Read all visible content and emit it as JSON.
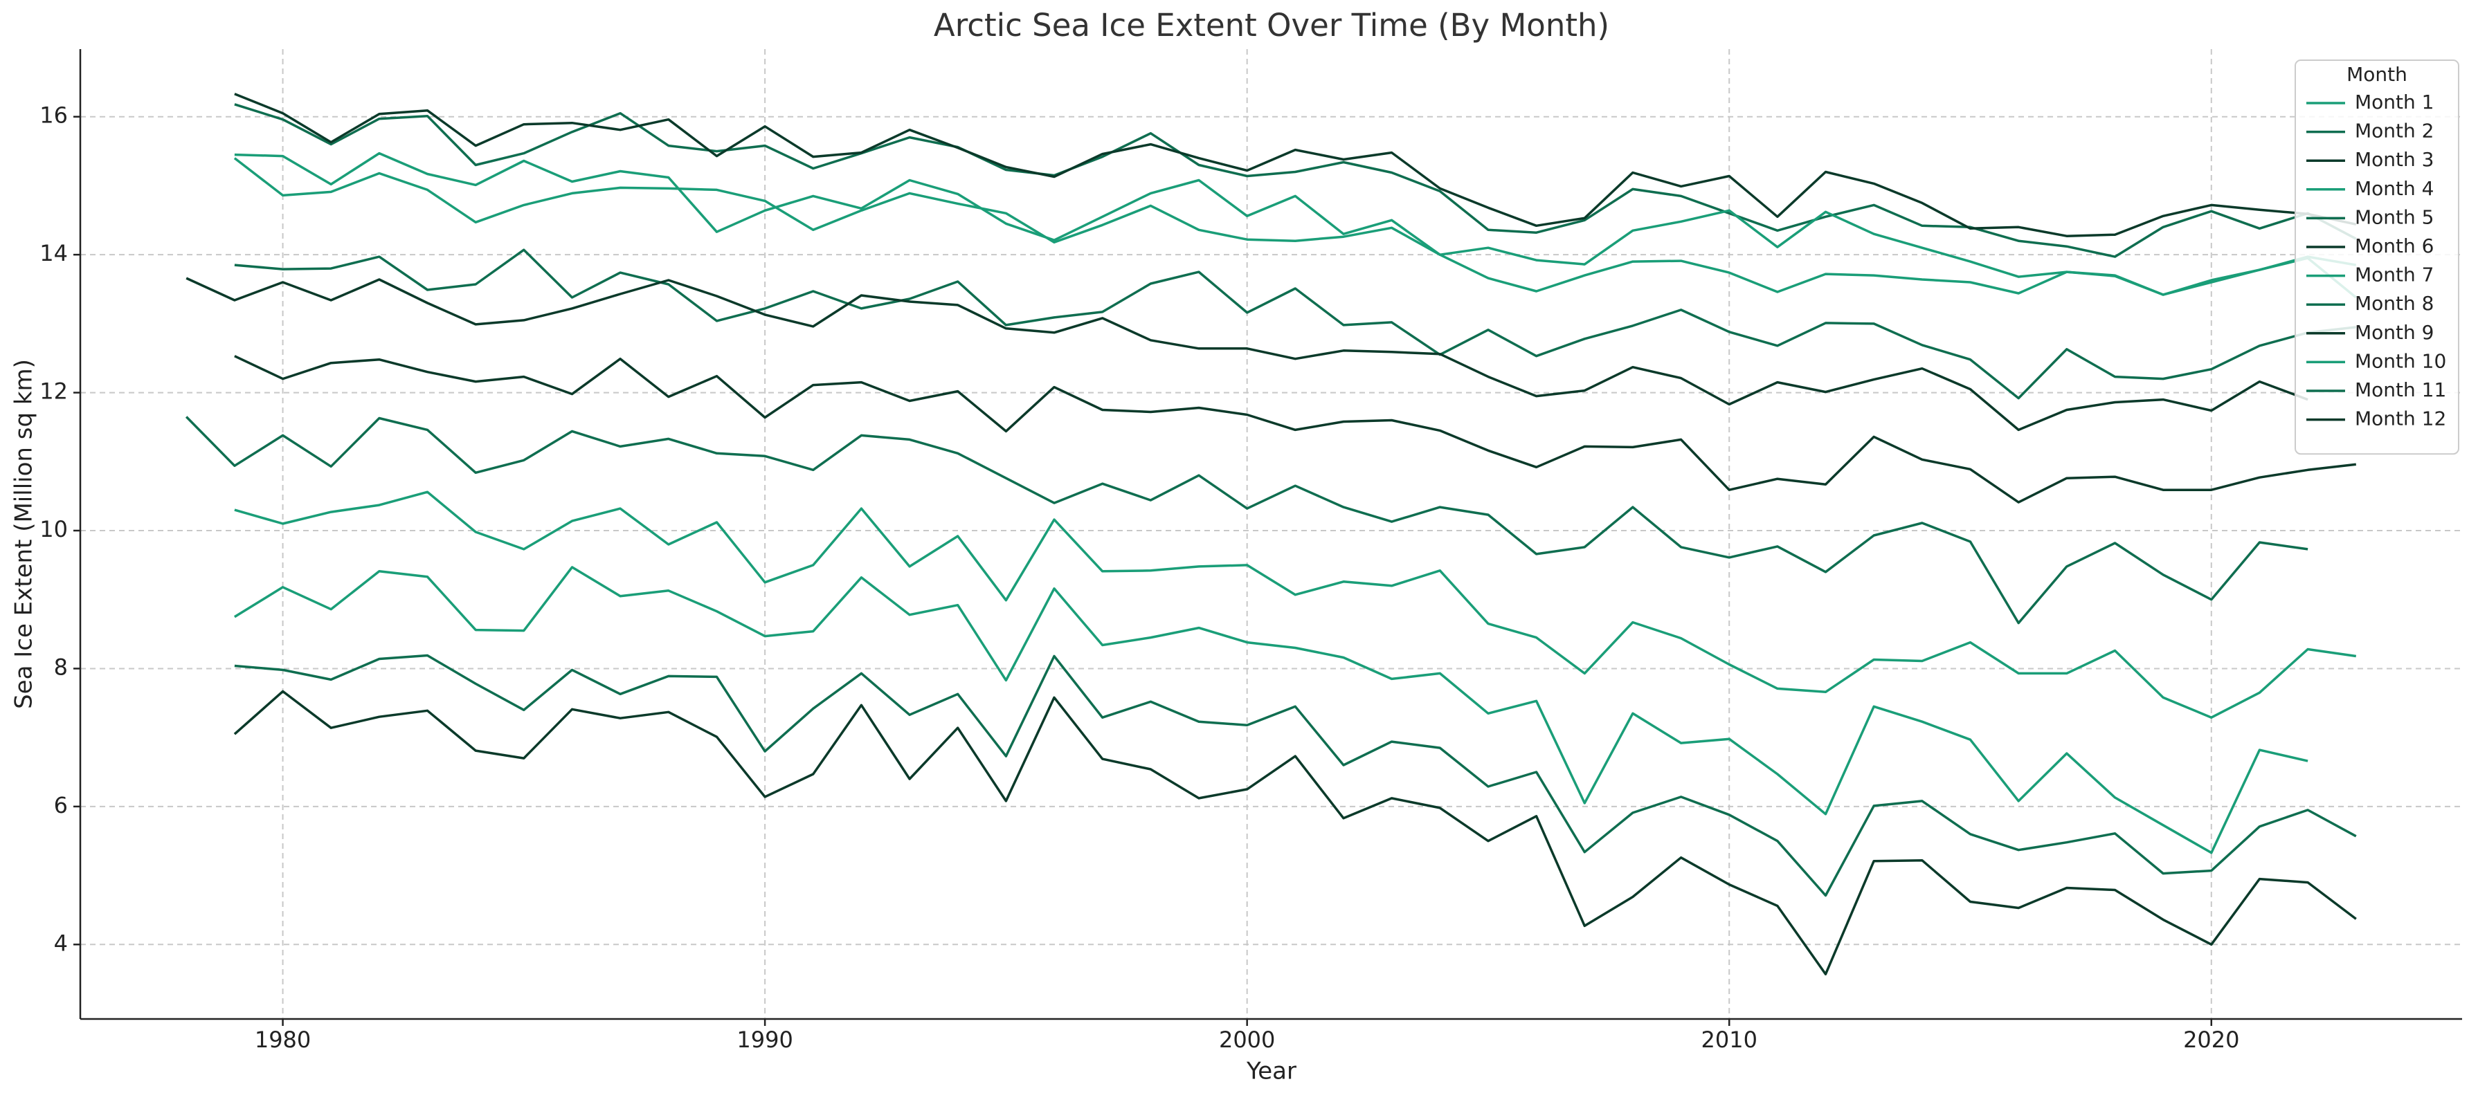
{
  "chart_data": {
    "type": "line",
    "title": "Arctic Sea Ice Extent Over Time (By Month)",
    "x_label": "Year",
    "y_label": "Sea Ice Extent (Million sq km)",
    "legend_title": "Month",
    "legend": "upper right",
    "grid": true,
    "xlim": [
      1975.8,
      2025.2
    ],
    "ylim": [
      2.92,
      16.98
    ],
    "xticks": [
      1980,
      1990,
      2000,
      2010,
      2020
    ],
    "yticks": [
      4,
      6,
      8,
      10,
      12,
      14,
      16
    ],
    "x": [
      1978,
      1979,
      1980,
      1981,
      1982,
      1983,
      1984,
      1985,
      1986,
      1987,
      1988,
      1989,
      1990,
      1991,
      1992,
      1993,
      1994,
      1995,
      1996,
      1997,
      1998,
      1999,
      2000,
      2001,
      2002,
      2003,
      2004,
      2005,
      2006,
      2007,
      2008,
      2009,
      2010,
      2011,
      2012,
      2013,
      2014,
      2015,
      2016,
      2017,
      2018,
      2019,
      2020,
      2021,
      2022,
      2023
    ],
    "series": [
      {
        "name": "Month 1",
        "color": "#1a9e78",
        "values": [
          null,
          15.4,
          14.86,
          14.91,
          15.18,
          14.94,
          14.47,
          14.72,
          14.89,
          14.97,
          14.96,
          14.94,
          14.78,
          14.36,
          14.64,
          14.89,
          14.74,
          14.6,
          14.18,
          14.43,
          14.71,
          14.36,
          14.22,
          14.2,
          14.26,
          14.39,
          14.0,
          13.66,
          13.47,
          13.7,
          13.9,
          13.91,
          13.74,
          13.46,
          13.72,
          13.7,
          13.64,
          13.6,
          13.44,
          13.75,
          13.69,
          13.42,
          13.6,
          13.78,
          13.95,
          13.38
        ]
      },
      {
        "name": "Month 2",
        "color": "#0f6e50",
        "values": [
          null,
          16.18,
          15.96,
          15.6,
          15.97,
          16.01,
          15.3,
          15.47,
          15.78,
          16.05,
          15.58,
          15.5,
          15.58,
          15.25,
          15.47,
          15.7,
          15.56,
          15.23,
          15.15,
          15.42,
          15.76,
          15.3,
          15.14,
          15.2,
          15.34,
          15.19,
          14.92,
          14.36,
          14.32,
          14.5,
          14.95,
          14.85,
          14.6,
          14.35,
          14.55,
          14.72,
          14.42,
          14.4,
          14.2,
          14.12,
          13.97,
          14.4,
          14.63,
          14.38,
          14.6,
          14.23
        ]
      },
      {
        "name": "Month 3",
        "color": "#0b3a2a",
        "values": [
          null,
          16.33,
          16.05,
          15.63,
          16.04,
          16.09,
          15.58,
          15.89,
          15.91,
          15.81,
          15.96,
          15.43,
          15.86,
          15.42,
          15.48,
          15.81,
          15.55,
          15.27,
          15.13,
          15.46,
          15.6,
          15.4,
          15.22,
          15.52,
          15.38,
          15.48,
          14.96,
          14.68,
          14.42,
          14.53,
          15.19,
          14.99,
          15.14,
          14.55,
          15.2,
          15.03,
          14.75,
          14.38,
          14.4,
          14.27,
          14.29,
          14.56,
          14.72,
          14.65,
          14.59,
          14.44
        ]
      },
      {
        "name": "Month 4",
        "color": "#1a9e78",
        "values": [
          null,
          15.45,
          15.43,
          15.02,
          15.47,
          15.17,
          15.01,
          15.36,
          15.06,
          15.21,
          15.12,
          14.33,
          14.64,
          14.85,
          14.67,
          15.08,
          14.88,
          14.45,
          14.21,
          14.55,
          14.89,
          15.08,
          14.56,
          14.85,
          14.3,
          14.5,
          14.0,
          14.1,
          13.92,
          13.86,
          14.35,
          14.48,
          14.64,
          14.11,
          14.62,
          14.3,
          14.1,
          13.9,
          13.68,
          13.75,
          13.7,
          13.42,
          13.63,
          13.78,
          13.97,
          13.85
        ]
      },
      {
        "name": "Month 5",
        "color": "#0f6e50",
        "values": [
          null,
          13.85,
          13.79,
          13.8,
          13.97,
          13.49,
          13.57,
          14.07,
          13.38,
          13.74,
          13.57,
          13.04,
          13.22,
          13.47,
          13.22,
          13.36,
          13.61,
          12.98,
          13.09,
          13.17,
          13.58,
          13.75,
          13.16,
          13.51,
          12.98,
          13.02,
          12.55,
          12.91,
          12.53,
          12.78,
          12.97,
          13.2,
          12.88,
          12.68,
          13.01,
          13.0,
          12.69,
          12.48,
          11.92,
          12.63,
          12.23,
          12.2,
          12.34,
          12.68,
          12.87,
          12.95
        ]
      },
      {
        "name": "Month 6",
        "color": "#0b3a2a",
        "values": [
          null,
          12.53,
          12.2,
          12.43,
          12.48,
          12.3,
          12.16,
          12.23,
          11.98,
          12.49,
          11.94,
          12.24,
          11.64,
          12.11,
          12.15,
          11.88,
          12.02,
          11.44,
          12.08,
          11.75,
          11.72,
          11.78,
          11.68,
          11.46,
          11.58,
          11.6,
          11.45,
          11.16,
          10.92,
          11.22,
          11.21,
          11.32,
          10.59,
          10.75,
          10.67,
          11.36,
          11.03,
          10.89,
          10.41,
          10.76,
          10.78,
          10.59,
          10.59,
          10.77,
          10.88,
          10.96
        ]
      },
      {
        "name": "Month 7",
        "color": "#1a9e78",
        "values": [
          null,
          10.3,
          10.1,
          10.27,
          10.37,
          10.56,
          9.98,
          9.73,
          10.14,
          10.32,
          9.8,
          10.12,
          9.25,
          9.5,
          10.32,
          9.48,
          9.92,
          8.99,
          10.16,
          9.41,
          9.42,
          9.48,
          9.5,
          9.07,
          9.26,
          9.2,
          9.42,
          8.65,
          8.45,
          7.93,
          8.67,
          8.44,
          8.06,
          7.71,
          7.66,
          8.13,
          8.11,
          8.38,
          7.93,
          7.93,
          8.26,
          7.58,
          7.29,
          7.65,
          8.28,
          8.18
        ]
      },
      {
        "name": "Month 8",
        "color": "#0f6e50",
        "values": [
          null,
          8.04,
          7.98,
          7.84,
          8.14,
          8.19,
          7.78,
          7.4,
          7.98,
          7.63,
          7.89,
          7.88,
          6.8,
          7.42,
          7.93,
          7.33,
          7.63,
          6.73,
          8.18,
          7.29,
          7.52,
          7.23,
          7.18,
          7.45,
          6.6,
          6.94,
          6.85,
          6.29,
          6.5,
          5.34,
          5.91,
          6.14,
          5.88,
          5.5,
          4.71,
          6.01,
          6.08,
          5.6,
          5.37,
          5.48,
          5.61,
          5.03,
          5.07,
          5.71,
          5.95,
          5.57
        ]
      },
      {
        "name": "Month 9",
        "color": "#0b3a2a",
        "values": [
          null,
          7.05,
          7.67,
          7.14,
          7.3,
          7.39,
          6.81,
          6.7,
          7.41,
          7.28,
          7.37,
          7.01,
          6.14,
          6.47,
          7.47,
          6.4,
          7.14,
          6.08,
          7.58,
          6.69,
          6.54,
          6.12,
          6.25,
          6.73,
          5.83,
          6.12,
          5.98,
          5.5,
          5.86,
          4.27,
          4.69,
          5.26,
          4.87,
          4.56,
          3.57,
          5.21,
          5.22,
          4.62,
          4.53,
          4.82,
          4.79,
          4.36,
          4.0,
          4.95,
          4.9,
          4.37
        ]
      },
      {
        "name": "Month 10",
        "color": "#1a9e78",
        "values": [
          null,
          8.75,
          9.18,
          8.86,
          9.41,
          9.33,
          8.56,
          8.55,
          9.47,
          9.05,
          9.13,
          8.83,
          8.47,
          8.54,
          9.32,
          8.78,
          8.92,
          7.83,
          9.16,
          8.34,
          8.45,
          8.59,
          8.38,
          8.3,
          8.16,
          7.85,
          7.93,
          7.35,
          7.53,
          6.05,
          7.35,
          6.92,
          6.98,
          6.47,
          5.89,
          7.45,
          7.23,
          6.97,
          6.08,
          6.77,
          6.13,
          5.73,
          5.33,
          6.82,
          6.66,
          null
        ]
      },
      {
        "name": "Month 11",
        "color": "#0f6e50",
        "values": [
          11.65,
          10.94,
          11.38,
          10.93,
          11.63,
          11.46,
          10.84,
          11.02,
          11.44,
          11.22,
          11.33,
          11.12,
          11.08,
          10.88,
          11.38,
          11.32,
          11.12,
          10.76,
          10.4,
          10.68,
          10.44,
          10.8,
          10.32,
          10.65,
          10.34,
          10.13,
          10.34,
          10.23,
          9.66,
          9.76,
          10.34,
          9.76,
          9.61,
          9.77,
          9.4,
          9.93,
          10.11,
          9.84,
          8.66,
          9.48,
          9.82,
          9.36,
          9.0,
          9.83,
          9.73,
          null
        ]
      },
      {
        "name": "Month 12",
        "color": "#0b3a2a",
        "values": [
          13.66,
          13.34,
          13.6,
          13.34,
          13.64,
          13.3,
          12.99,
          13.05,
          13.22,
          13.43,
          13.63,
          13.4,
          13.13,
          12.96,
          13.41,
          13.32,
          13.27,
          12.93,
          12.87,
          13.08,
          12.76,
          12.64,
          12.64,
          12.49,
          12.61,
          12.59,
          12.56,
          12.23,
          11.95,
          12.03,
          12.37,
          12.21,
          11.83,
          12.15,
          12.01,
          12.19,
          12.35,
          12.05,
          11.46,
          11.75,
          11.86,
          11.9,
          11.74,
          12.16,
          11.9,
          null
        ]
      }
    ]
  }
}
